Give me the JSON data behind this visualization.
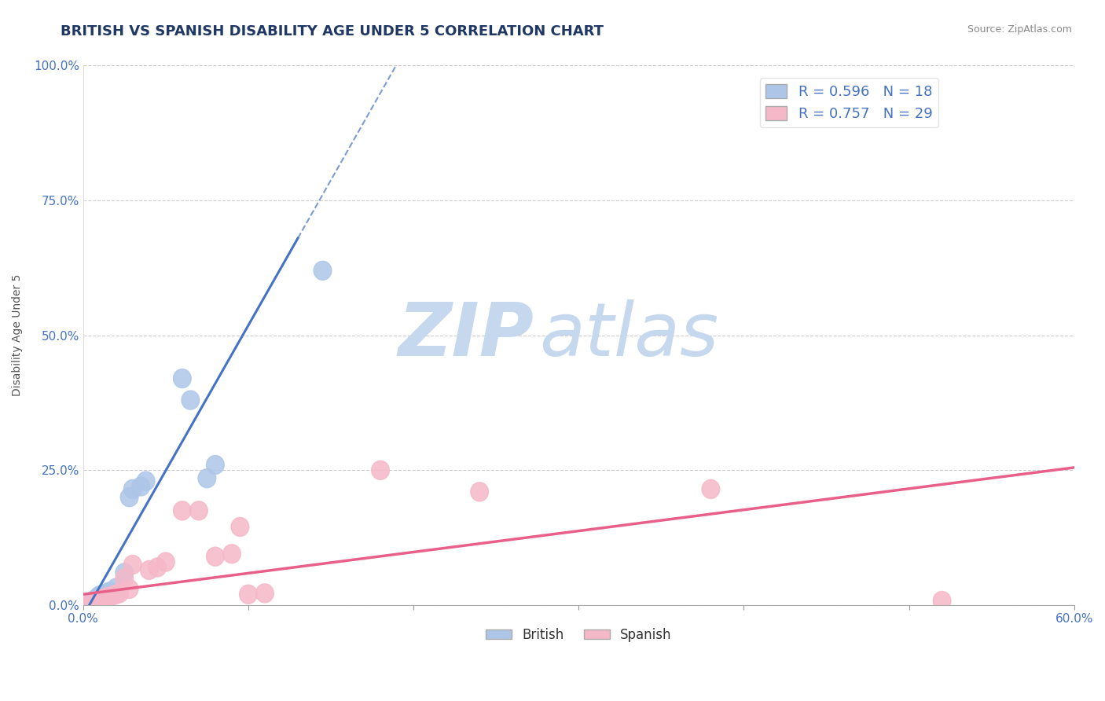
{
  "title": "BRITISH VS SPANISH DISABILITY AGE UNDER 5 CORRELATION CHART",
  "source": "Source: ZipAtlas.com",
  "ylabel": "Disability Age Under 5",
  "xlim": [
    0.0,
    0.6
  ],
  "ylim": [
    0.0,
    1.0
  ],
  "xticks": [
    0.0,
    0.1,
    0.2,
    0.3,
    0.4,
    0.5,
    0.6
  ],
  "yticks": [
    0.0,
    0.25,
    0.5,
    0.75,
    1.0
  ],
  "yticklabels": [
    "0.0%",
    "25.0%",
    "50.0%",
    "75.0%",
    "100.0%"
  ],
  "british_R": 0.596,
  "british_N": 18,
  "spanish_R": 0.757,
  "spanish_N": 29,
  "british_color": "#adc6e8",
  "british_line_color": "#4472c4",
  "spanish_color": "#f5b8c8",
  "spanish_line_color": "#e8608a",
  "british_points_x": [
    0.005,
    0.007,
    0.009,
    0.01,
    0.012,
    0.014,
    0.016,
    0.02,
    0.025,
    0.028,
    0.03,
    0.035,
    0.038,
    0.06,
    0.065,
    0.075,
    0.08,
    0.145
  ],
  "british_points_y": [
    0.005,
    0.01,
    0.015,
    0.018,
    0.02,
    0.022,
    0.025,
    0.032,
    0.06,
    0.2,
    0.215,
    0.22,
    0.23,
    0.42,
    0.38,
    0.235,
    0.26,
    0.62
  ],
  "british_line_x0": 0.0,
  "british_line_y0": -0.02,
  "british_line_x1": 0.13,
  "british_line_y1": 0.68,
  "british_line_solid_end": 0.13,
  "british_line_dashed_end": 0.42,
  "spanish_points_x": [
    0.003,
    0.005,
    0.007,
    0.008,
    0.009,
    0.01,
    0.012,
    0.013,
    0.015,
    0.018,
    0.02,
    0.022,
    0.025,
    0.028,
    0.03,
    0.04,
    0.045,
    0.05,
    0.06,
    0.07,
    0.08,
    0.09,
    0.095,
    0.1,
    0.11,
    0.18,
    0.24,
    0.38,
    0.52
  ],
  "spanish_points_y": [
    0.003,
    0.005,
    0.006,
    0.007,
    0.008,
    0.01,
    0.012,
    0.013,
    0.015,
    0.018,
    0.02,
    0.022,
    0.05,
    0.03,
    0.075,
    0.065,
    0.07,
    0.08,
    0.175,
    0.175,
    0.09,
    0.095,
    0.145,
    0.02,
    0.022,
    0.25,
    0.21,
    0.215,
    0.008
  ],
  "spanish_line_x0": 0.0,
  "spanish_line_y0": 0.02,
  "spanish_line_x1": 0.6,
  "spanish_line_y1": 0.255,
  "watermark_zip": "ZIP",
  "watermark_atlas": "atlas",
  "watermark_color_zip": "#c5d8ee",
  "watermark_color_atlas": "#c5d8ee",
  "grid_color": "#cccccc",
  "background_color": "#ffffff",
  "title_color": "#1f3864",
  "axis_label_color": "#555555",
  "tick_color": "#4472c4",
  "title_fontsize": 13,
  "axis_label_fontsize": 10,
  "legend_fontsize": 13
}
